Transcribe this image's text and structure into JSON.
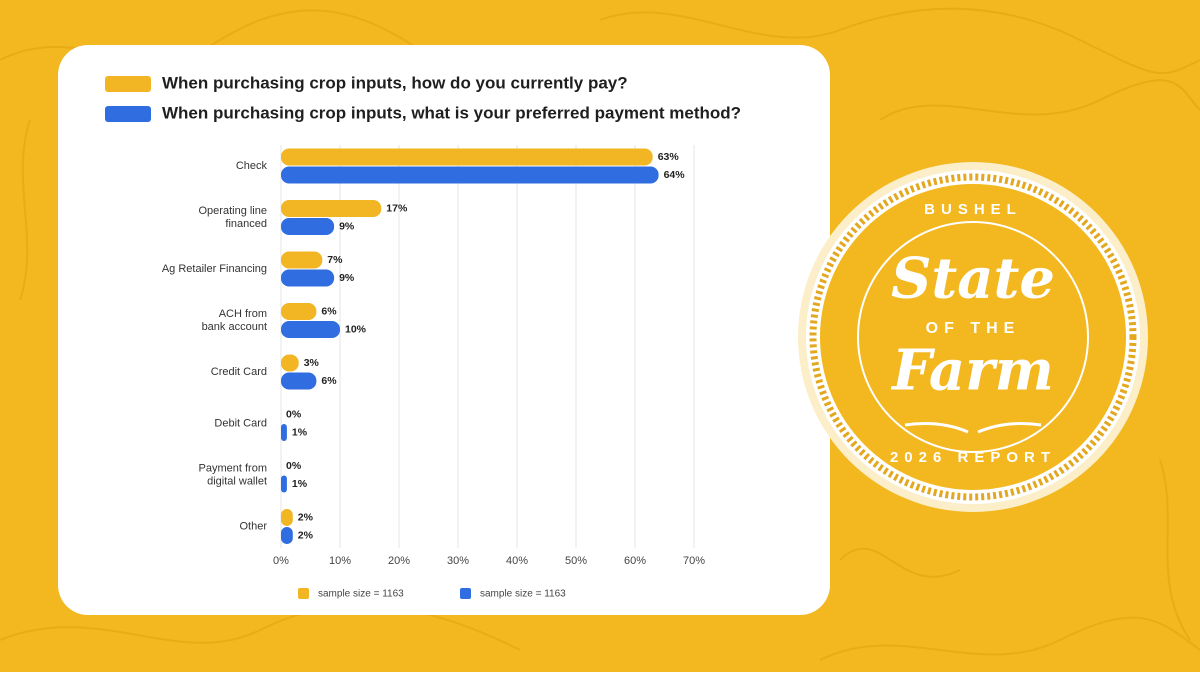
{
  "chart_data": {
    "type": "hbar",
    "categories": [
      "Check",
      "Operating line\nfinanced",
      "Ag Retailer Financing",
      "ACH from\nbank account",
      "Credit Card",
      "Debit Card",
      "Payment from\ndigital wallet",
      "Other"
    ],
    "series": [
      {
        "name": "When purchasing crop inputs, how do you currently pay?",
        "color": "#f2b523",
        "footnote": "sample size = 1163",
        "values": [
          63,
          17,
          7,
          6,
          3,
          0,
          0,
          2
        ],
        "value_labels": [
          "63%",
          "17%",
          "7%",
          "6%",
          "3%",
          "0%",
          "0%",
          "2%"
        ]
      },
      {
        "name": "When purchasing crop inputs, what is your preferred payment method?",
        "color": "#2f6de1",
        "footnote": "sample size = 1163",
        "values": [
          64,
          9,
          9,
          10,
          6,
          1,
          1,
          2
        ],
        "value_labels": [
          "64%",
          "9%",
          "9%",
          "10%",
          "6%",
          "1%",
          "1%",
          "2%"
        ]
      }
    ],
    "xlim": [
      0,
      70
    ],
    "xticks": [
      {
        "value": 0,
        "label": "0%"
      },
      {
        "value": 10,
        "label": "10%"
      },
      {
        "value": 20,
        "label": "20%"
      },
      {
        "value": 30,
        "label": "30%"
      },
      {
        "value": 40,
        "label": "40%"
      },
      {
        "value": 50,
        "label": "50%"
      },
      {
        "value": 60,
        "label": "60%"
      },
      {
        "value": 70,
        "label": "70%"
      }
    ],
    "grid": true
  },
  "badge": {
    "brand": "BUSHEL",
    "title_top": "State",
    "middle": "OF THE",
    "title_bottom": "Farm",
    "bottom": "2026 REPORT"
  }
}
